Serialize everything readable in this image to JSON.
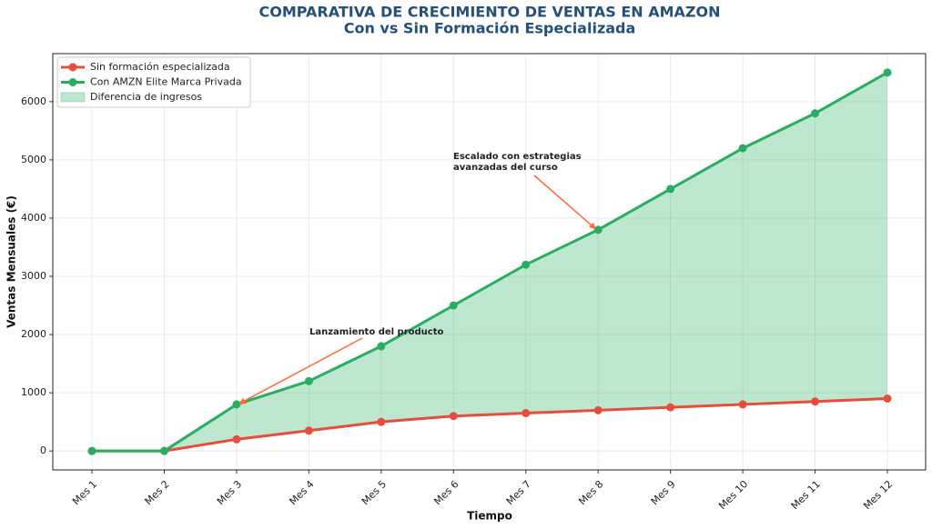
{
  "chart_data": {
    "type": "line",
    "title": "COMPARATIVA DE CRECIMIENTO DE VENTAS EN AMAZON",
    "subtitle": "Con vs Sin Formación Especializada",
    "x_label": "Tiempo",
    "y_label": "Ventas Mensuales (€)",
    "categories": [
      "Mes 1",
      "Mes 2",
      "Mes 3",
      "Mes 4",
      "Mes 5",
      "Mes 6",
      "Mes 7",
      "Mes 8",
      "Mes 9",
      "Mes 10",
      "Mes 11",
      "Mes 12"
    ],
    "series": [
      {
        "name": "Sin formación especializada",
        "color": "#e74c3c",
        "values": [
          0,
          0,
          200,
          350,
          500,
          600,
          650,
          700,
          750,
          800,
          850,
          900
        ]
      },
      {
        "name": "Con AMZN Elite Marca Privada",
        "color": "#27ae60",
        "values": [
          0,
          0,
          800,
          1200,
          1800,
          2500,
          3200,
          3800,
          4500,
          5200,
          5800,
          6500
        ]
      }
    ],
    "fill": {
      "name": "Diferencia de ingresos",
      "color": "#27ae60"
    },
    "ylim": [
      -325,
      6825
    ],
    "yticks": [
      0,
      1000,
      2000,
      3000,
      4000,
      5000,
      6000
    ],
    "grid": true,
    "legend": "upper left",
    "annotations": [
      {
        "text": "Lanzamiento del producto",
        "color": "#ff6b35"
      },
      {
        "text": [
          "Escalado con estrategias",
          "avanzadas del curso"
        ],
        "color": "#ff6b35"
      }
    ]
  }
}
